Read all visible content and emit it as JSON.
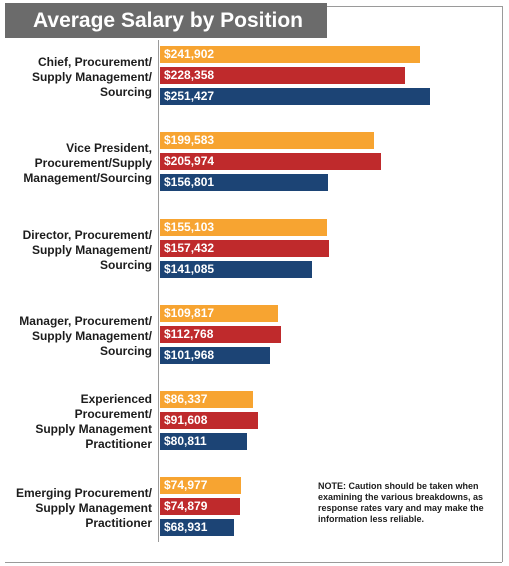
{
  "chart_data": {
    "type": "bar",
    "orientation": "horizontal",
    "title": "Average Salary by Position",
    "categories": [
      "Chief, Procurement/\nSupply Management/\nSourcing",
      "Vice President,\nProcurement/Supply\nManagement/Sourcing",
      "Director, Procurement/\nSupply Management/\nSourcing",
      "Manager, Procurement/\nSupply Management/\nSourcing",
      "Experienced\nProcurement/\nSupply Management\nPractitioner",
      "Emerging Procurement/\nSupply Management\nPractitioner"
    ],
    "series": [
      {
        "color": "#f7a431",
        "values": [
          241902,
          199583,
          155103,
          109817,
          86337,
          74977
        ],
        "labels": [
          "$241,902",
          "$199,583",
          "$155,103",
          "$109,817",
          "$86,337",
          "$74,977"
        ]
      },
      {
        "color": "#bf2a2c",
        "values": [
          228358,
          205974,
          157432,
          112768,
          91608,
          74879
        ],
        "labels": [
          "$228,358",
          "$205,974",
          "$157,432",
          "$112,768",
          "$91,608",
          "$74,879"
        ]
      },
      {
        "color": "#1c4475",
        "values": [
          251427,
          156801,
          141085,
          101968,
          80811,
          68931
        ],
        "labels": [
          "$251,427",
          "$156,801",
          "$141,085",
          "$101,968",
          "$80,811",
          "$68,931"
        ]
      }
    ],
    "xlim": [
      0,
      251427
    ],
    "grid": false,
    "legend": "none"
  },
  "note": "NOTE: Caution should be taken when examining the various breakdowns, as response rates vary and may make the information less reliable."
}
